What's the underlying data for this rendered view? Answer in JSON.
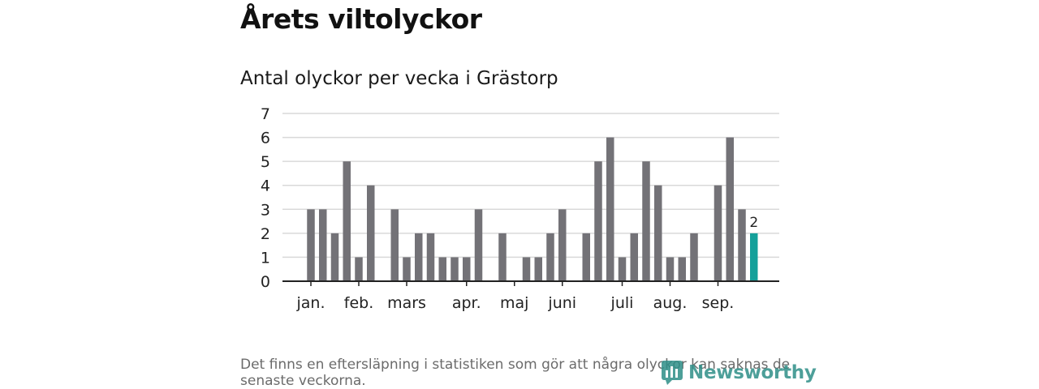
{
  "title": "Årets viltolyckor",
  "subtitle": "Antal olyckor per vecka i Grästorp",
  "footnote": "Det finns en eftersläpning i statistiken som gör att några olyckor kan saknas de senaste veckorna.",
  "brand": {
    "name": "Newsworthy",
    "icon": "newsworthy-logo-icon"
  },
  "colors": {
    "bar": "#737277",
    "highlight": "#14a09a",
    "grid": "#d9d9d9",
    "axis": "#222222"
  },
  "chart_data": {
    "type": "bar",
    "title": "Antal olyckor per vecka i Grästorp",
    "xlabel": "",
    "ylabel": "",
    "ylim": [
      0,
      7
    ],
    "yticks": [
      0,
      1,
      2,
      3,
      4,
      5,
      6,
      7
    ],
    "grid": true,
    "x": [
      1,
      2,
      3,
      4,
      5,
      6,
      7,
      8,
      9,
      10,
      11,
      12,
      13,
      14,
      15,
      16,
      17,
      18,
      19,
      20,
      21,
      22,
      23,
      24,
      25,
      26,
      27,
      28,
      29,
      30,
      31,
      32,
      33,
      34,
      35,
      36,
      37,
      38,
      39,
      40
    ],
    "values": [
      0,
      0,
      3,
      3,
      2,
      5,
      1,
      4,
      0,
      3,
      1,
      2,
      2,
      1,
      1,
      1,
      3,
      0,
      2,
      0,
      1,
      1,
      2,
      3,
      0,
      2,
      5,
      6,
      1,
      2,
      5,
      4,
      1,
      1,
      2,
      0,
      4,
      6,
      3,
      2
    ],
    "highlight_index": 39,
    "data_labels": [
      {
        "index": 39,
        "text": "2"
      }
    ],
    "month_labels": [
      {
        "label": "jan.",
        "x": 3
      },
      {
        "label": "feb.",
        "x": 7
      },
      {
        "label": "mars",
        "x": 11
      },
      {
        "label": "apr.",
        "x": 16
      },
      {
        "label": "maj",
        "x": 20
      },
      {
        "label": "juni",
        "x": 24
      },
      {
        "label": "juli",
        "x": 29
      },
      {
        "label": "aug.",
        "x": 33
      },
      {
        "label": "sep.",
        "x": 37
      }
    ]
  }
}
